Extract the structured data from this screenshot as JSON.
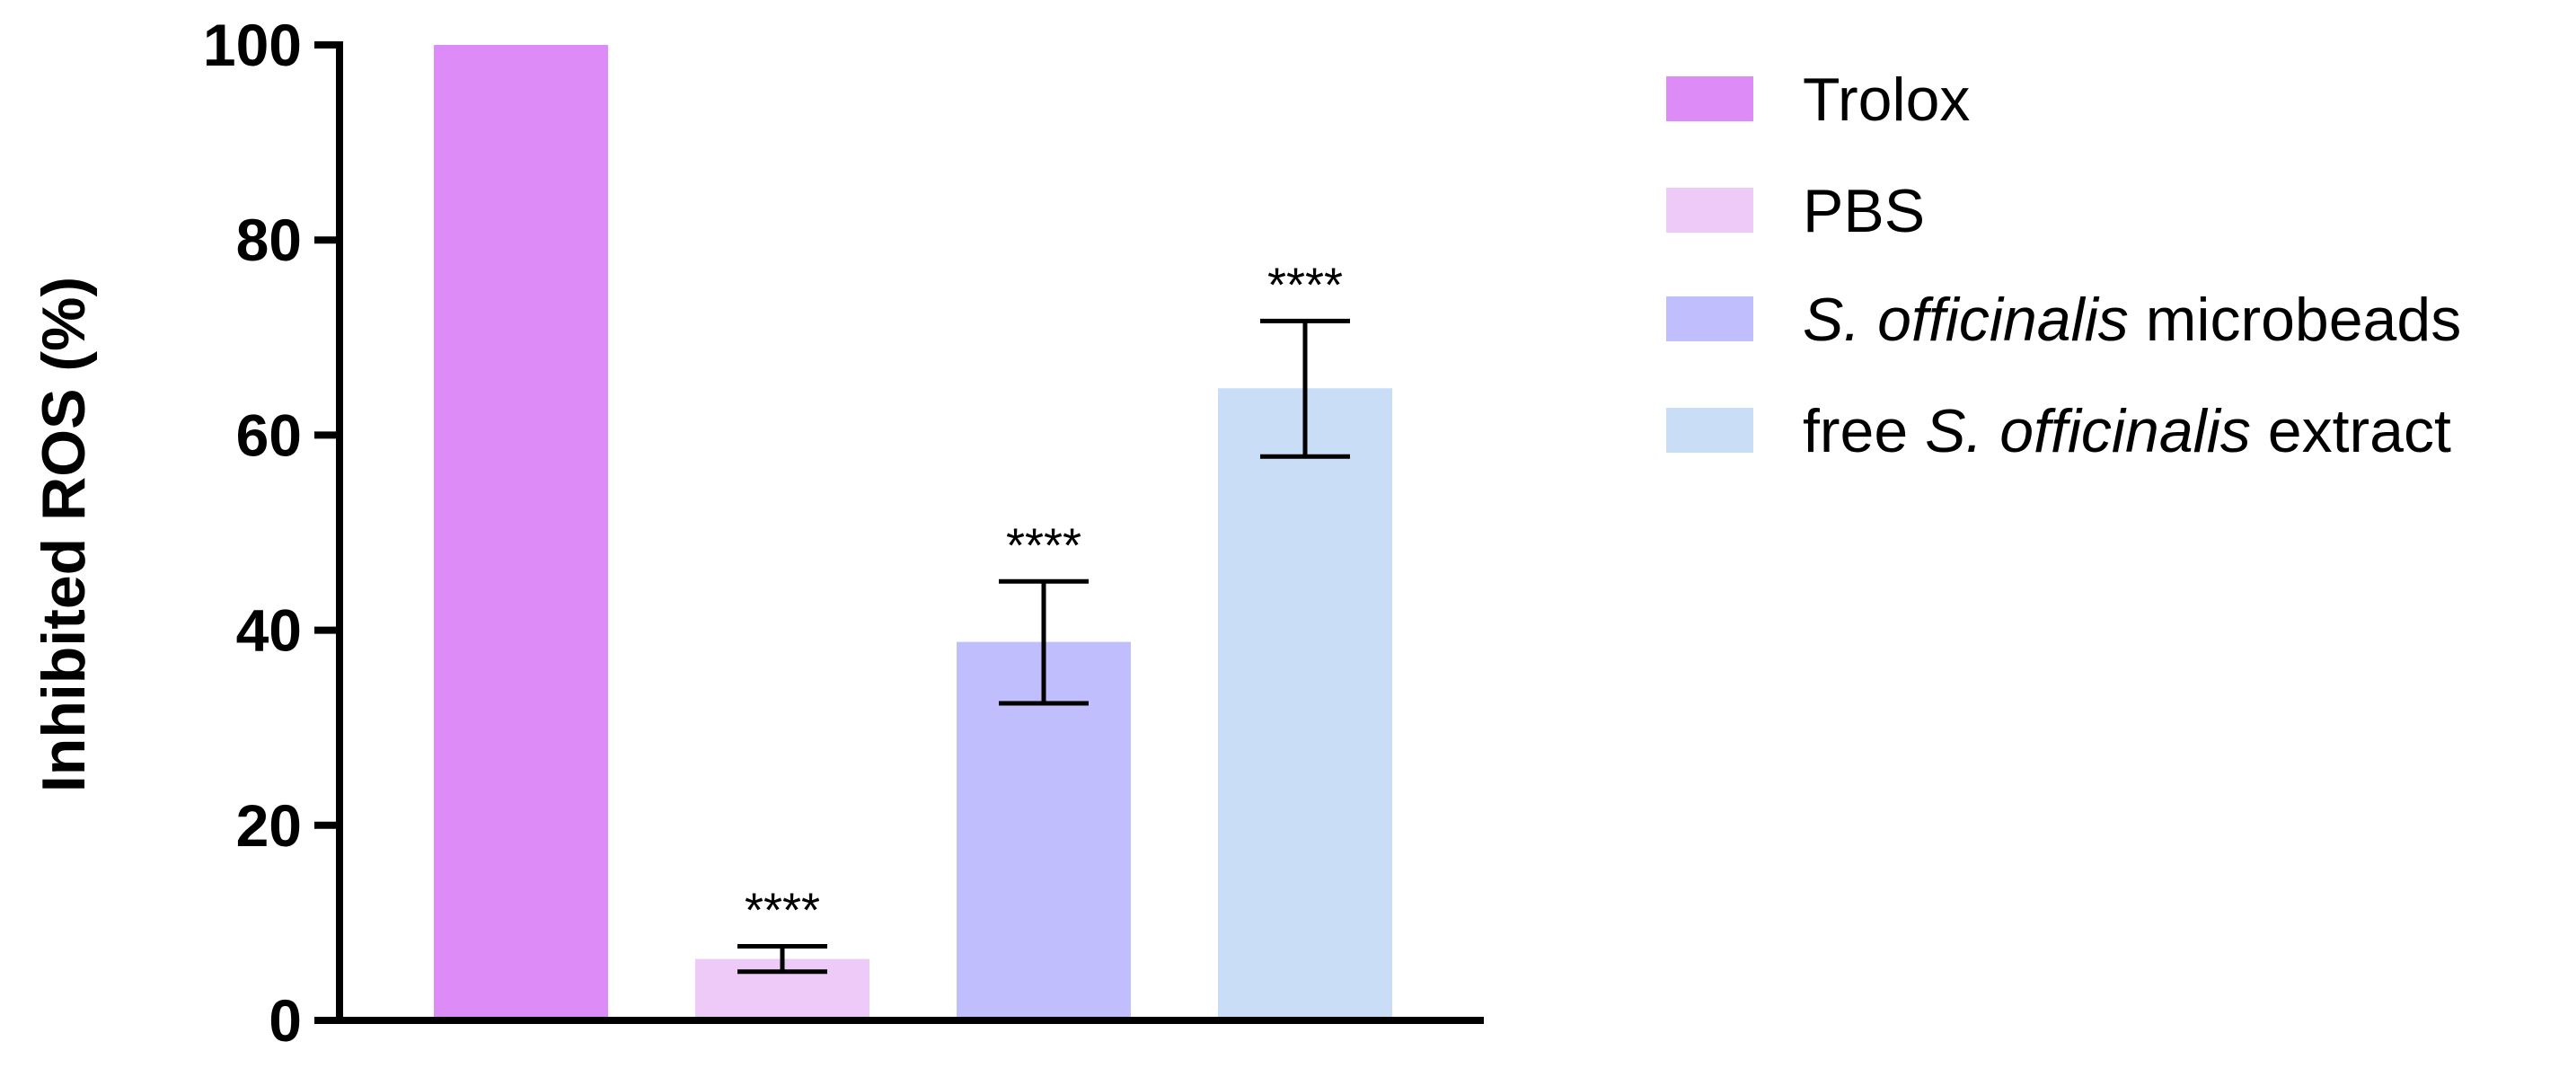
{
  "chart_data": {
    "type": "bar",
    "title": "",
    "xlabel": "",
    "ylabel": "Inhibited ROS (%)",
    "ylim": [
      0,
      100
    ],
    "yticks": [
      0,
      20,
      40,
      60,
      80,
      100
    ],
    "grid": false,
    "legend_position": "right",
    "categories": [
      "Trolox",
      "PBS",
      "S. officinalis microbeads",
      "free S. officinalis extract"
    ],
    "values": [
      100,
      6.3,
      38.8,
      64.8
    ],
    "error_bars": [
      {
        "low": 100,
        "high": 100
      },
      {
        "low": 5.0,
        "high": 7.6
      },
      {
        "low": 32.5,
        "high": 45.0
      },
      {
        "low": 57.8,
        "high": 71.7
      }
    ],
    "significance": [
      "",
      "****",
      "****",
      "****"
    ],
    "colors": [
      "#DD8BF7",
      "#EECAF8",
      "#C0BEFC",
      "#C9DDF7"
    ],
    "legend": [
      {
        "segments": [
          {
            "text": "Trolox",
            "italic": false
          }
        ]
      },
      {
        "segments": [
          {
            "text": "PBS",
            "italic": false
          }
        ]
      },
      {
        "segments": [
          {
            "text": "S. officinalis",
            "italic": true
          },
          {
            "text": " microbeads",
            "italic": false
          }
        ]
      },
      {
        "segments": [
          {
            "text": "free ",
            "italic": false
          },
          {
            "text": "S. officinalis",
            "italic": true
          },
          {
            "text": " extract",
            "italic": false
          }
        ]
      }
    ]
  }
}
